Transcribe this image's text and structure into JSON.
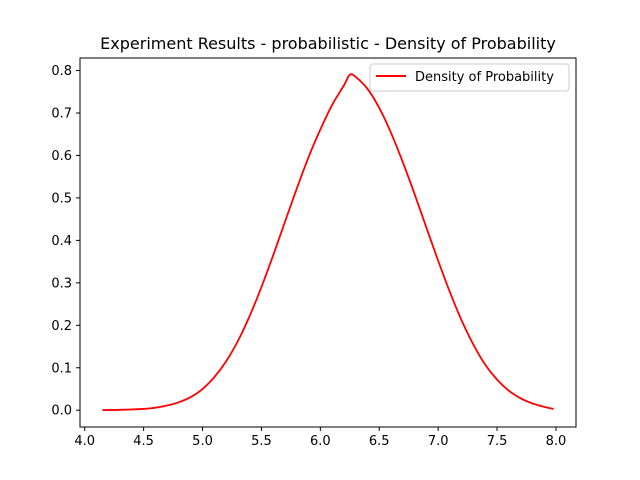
{
  "chart_data": {
    "type": "line",
    "title": "Experiment Results - probabilistic - Density of Probability",
    "xlabel": "",
    "ylabel": "",
    "xlim": [
      3.96,
      8.17
    ],
    "ylim": [
      -0.0395,
      0.8295
    ],
    "x_ticks": [
      4.0,
      4.5,
      5.0,
      5.5,
      6.0,
      6.5,
      7.0,
      7.5,
      8.0
    ],
    "x_tick_labels": [
      "4.0",
      "4.5",
      "5.0",
      "5.5",
      "6.0",
      "6.5",
      "7.0",
      "7.5",
      "8.0"
    ],
    "y_ticks": [
      0.0,
      0.1,
      0.2,
      0.3,
      0.4,
      0.5,
      0.6,
      0.7,
      0.8
    ],
    "y_tick_labels": [
      "0.0",
      "0.1",
      "0.2",
      "0.3",
      "0.4",
      "0.5",
      "0.6",
      "0.7",
      "0.8"
    ],
    "grid": false,
    "legend": {
      "position": "top-right"
    },
    "series": [
      {
        "name": "Density of Probability",
        "color": "#ff0000",
        "x": [
          4.15,
          4.3,
          4.5,
          4.6,
          4.7,
          4.8,
          4.9,
          5.0,
          5.1,
          5.2,
          5.3,
          5.4,
          5.5,
          5.6,
          5.7,
          5.8,
          5.9,
          6.0,
          6.1,
          6.2,
          6.25,
          6.3,
          6.4,
          6.5,
          6.6,
          6.7,
          6.8,
          6.9,
          7.0,
          7.1,
          7.2,
          7.3,
          7.4,
          7.5,
          7.6,
          7.7,
          7.8,
          7.9,
          7.98
        ],
        "y": [
          0.0003,
          0.001,
          0.003,
          0.006,
          0.011,
          0.019,
          0.031,
          0.05,
          0.078,
          0.115,
          0.163,
          0.222,
          0.29,
          0.365,
          0.444,
          0.522,
          0.596,
          0.661,
          0.719,
          0.765,
          0.79,
          0.785,
          0.757,
          0.712,
          0.653,
          0.584,
          0.509,
          0.43,
          0.352,
          0.278,
          0.211,
          0.154,
          0.107,
          0.072,
          0.046,
          0.028,
          0.016,
          0.008,
          0.003
        ]
      }
    ]
  }
}
